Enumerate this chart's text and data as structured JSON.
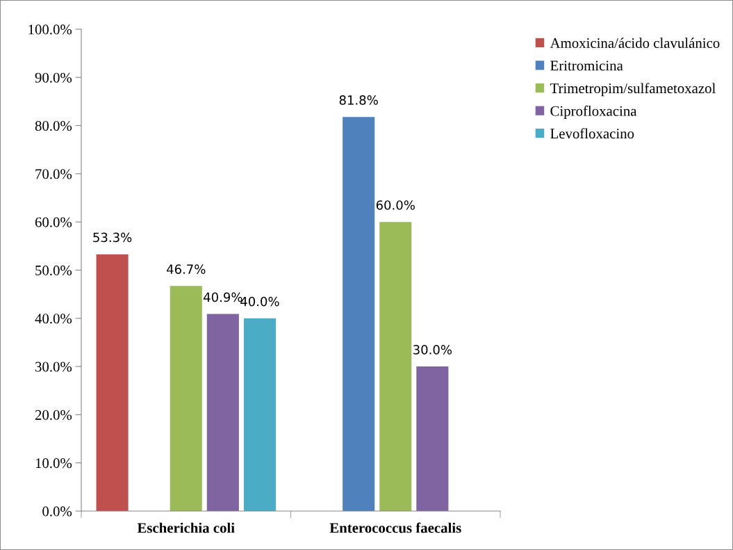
{
  "chart_data": {
    "type": "bar",
    "categories": [
      "Escherichia coli",
      "Enterococcus faecalis"
    ],
    "series": [
      {
        "name": "Amoxicina/ácido clavulánico",
        "color": "#c0504d",
        "values": [
          53.3,
          null
        ],
        "value_labels": [
          "53.3%",
          null
        ]
      },
      {
        "name": "Eritromicina",
        "color": "#4f81bd",
        "values": [
          null,
          81.8
        ],
        "value_labels": [
          null,
          "81.8%"
        ]
      },
      {
        "name": "Trimetropim/sulfametoxazol",
        "color": "#9bbb59",
        "values": [
          46.7,
          60.0
        ],
        "value_labels": [
          "46.7%",
          "60.0%"
        ]
      },
      {
        "name": "Ciprofloxacina",
        "color": "#8064a2",
        "values": [
          40.9,
          30.0
        ],
        "value_labels": [
          "40.9%",
          "30.0%"
        ]
      },
      {
        "name": "Levofloxacino",
        "color": "#4bacc6",
        "values": [
          40.0,
          null
        ],
        "value_labels": [
          "40.0%",
          null
        ]
      }
    ],
    "ylim": [
      0,
      100
    ],
    "yticks": [
      {
        "value": 0,
        "label": "0.0%"
      },
      {
        "value": 10,
        "label": "10.0%"
      },
      {
        "value": 20,
        "label": "20.0%"
      },
      {
        "value": 30,
        "label": "30.0%"
      },
      {
        "value": 40,
        "label": "40.0%"
      },
      {
        "value": 50,
        "label": "50.0%"
      },
      {
        "value": 60,
        "label": "60.0%"
      },
      {
        "value": 70,
        "label": "70.0%"
      },
      {
        "value": 80,
        "label": "80.0%"
      },
      {
        "value": 90,
        "label": "90.0%"
      },
      {
        "value": 100,
        "label": "100.0%"
      }
    ],
    "grid": false,
    "legend": "top right"
  }
}
